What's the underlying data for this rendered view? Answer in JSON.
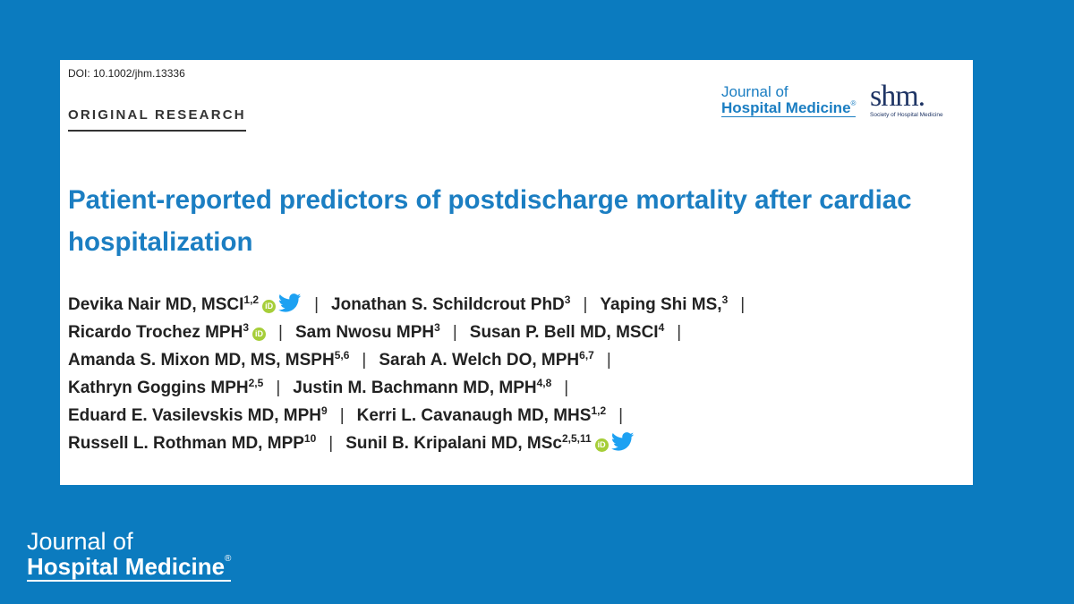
{
  "doi": "DOI: 10.1002/jhm.13336",
  "section": "ORIGINAL RESEARCH",
  "journal_logo": {
    "line1": "Journal of",
    "line2": "Hospital Medicine",
    "reg": "®"
  },
  "society_logo": {
    "mark": "shm.",
    "subtitle": "Society of Hospital Medicine"
  },
  "title": "Patient-reported predictors of postdischarge mortality after cardiac hospitalization",
  "authors": [
    {
      "name": "Devika Nair MD, MSCI",
      "sup": "1,2",
      "orcid": true,
      "twitter": true
    },
    {
      "name": "Jonathan S. Schildcrout PhD",
      "sup": "3"
    },
    {
      "name": "Yaping Shi MS,",
      "sup": "3"
    },
    {
      "name": "Ricardo Trochez MPH",
      "sup": "3",
      "orcid": true
    },
    {
      "name": "Sam Nwosu MPH",
      "sup": "3"
    },
    {
      "name": "Susan P. Bell MD, MSCI",
      "sup": "4"
    },
    {
      "name": "Amanda S. Mixon MD, MS, MSPH",
      "sup": "5,6"
    },
    {
      "name": "Sarah A. Welch DO, MPH",
      "sup": "6,7"
    },
    {
      "name": "Kathryn Goggins MPH",
      "sup": "2,5"
    },
    {
      "name": "Justin M. Bachmann MD, MPH",
      "sup": "4,8"
    },
    {
      "name": "Eduard E. Vasilevskis MD, MPH",
      "sup": "9"
    },
    {
      "name": "Kerri L. Cavanaugh MD, MHS",
      "sup": "1,2"
    },
    {
      "name": "Russell L. Rothman MD, MPP",
      "sup": "10"
    },
    {
      "name": "Sunil B. Kripalani MD, MSc",
      "sup": "2,5,11",
      "orcid": true,
      "twitter": true
    }
  ],
  "separator": "|",
  "orcid_label": "iD",
  "icons": {
    "orcid": "orcid-icon",
    "twitter": "twitter-bird-icon"
  },
  "colors": {
    "background": "#0b7bbf",
    "title": "#1b7ec2",
    "orcid": "#a6ce39",
    "twitter": "#1da1f2"
  },
  "footer_logo": {
    "line1": "Journal of",
    "line2": "Hospital Medicine",
    "reg": "®"
  }
}
